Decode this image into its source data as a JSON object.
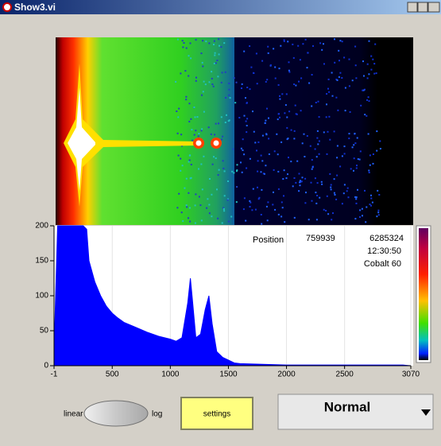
{
  "window": {
    "title": "Show3.vi"
  },
  "chart_data": {
    "type": "area",
    "x": [
      -1,
      30,
      60,
      150,
      250,
      280,
      300,
      350,
      400,
      450,
      500,
      550,
      600,
      700,
      800,
      900,
      1000,
      1050,
      1100,
      1150,
      1173,
      1190,
      1220,
      1260,
      1300,
      1332,
      1360,
      1400,
      1450,
      1500,
      1550,
      1600,
      1800,
      2000,
      2500,
      3000,
      3070
    ],
    "values": [
      20,
      200,
      200,
      200,
      200,
      195,
      150,
      120,
      100,
      85,
      75,
      68,
      62,
      55,
      48,
      42,
      38,
      35,
      40,
      90,
      125,
      95,
      40,
      45,
      80,
      100,
      60,
      20,
      12,
      8,
      4,
      3,
      2,
      1,
      1,
      1,
      0
    ],
    "color": "#0000ff",
    "xlim": [
      -1,
      3070
    ],
    "ylim": [
      0,
      200
    ],
    "xticks": [
      -1,
      500,
      1000,
      1500,
      2000,
      2500,
      3070
    ],
    "yticks": [
      0,
      50,
      100,
      150,
      200
    ],
    "grid": true,
    "annotations": [
      "Position",
      "759939",
      "6285324",
      "12:30:50",
      "Cobalt 60"
    ]
  },
  "controls": {
    "scale_off": "linear",
    "scale_on": "log",
    "settings": "settings",
    "mode": "Normal"
  }
}
